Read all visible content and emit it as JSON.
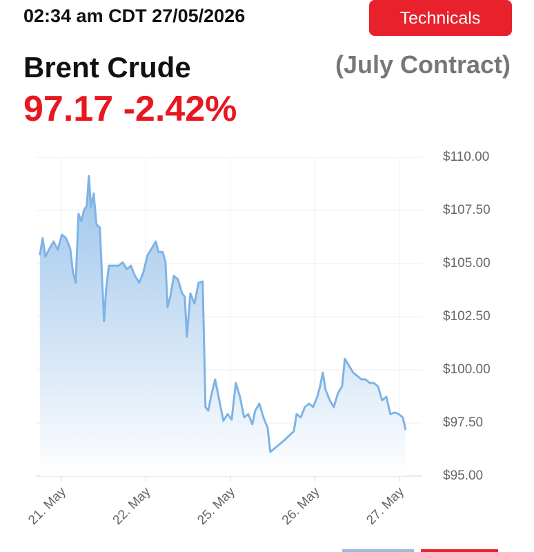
{
  "header": {
    "timestamp": "02:34 am CDT 27/05/2026",
    "button": "Technicals",
    "instrument": "Brent Crude",
    "contract": "(July Contract)",
    "price": "97.17",
    "change": "-2.42%"
  },
  "chart_data": {
    "type": "area",
    "color": "#7eb3e6",
    "x": [
      -0.253,
      -0.22,
      -0.188,
      -0.139,
      -0.09,
      -0.041,
      0.008,
      0.057,
      0.106,
      0.139,
      0.171,
      0.204,
      0.237,
      0.269,
      0.302,
      0.327,
      0.351,
      0.384,
      0.416,
      0.457,
      0.482,
      0.506,
      0.531,
      0.563,
      0.629,
      0.678,
      0.727,
      0.776,
      0.824,
      0.873,
      0.922,
      0.971,
      1.02,
      1.069,
      1.118,
      1.151,
      1.2,
      1.233,
      1.257,
      1.29,
      1.331,
      1.38,
      1.429,
      1.461,
      1.486,
      1.527,
      1.576,
      1.624,
      1.673,
      1.706,
      1.739,
      1.771,
      1.82,
      1.869,
      1.918,
      1.967,
      2.016,
      2.065,
      2.114,
      2.163,
      2.212,
      2.261,
      2.294,
      2.343,
      2.392,
      2.441,
      2.473,
      2.522,
      2.62,
      2.751,
      2.784,
      2.833,
      2.882,
      2.931,
      2.98,
      3.029,
      3.061,
      3.094,
      3.127,
      3.176,
      3.224,
      3.273,
      3.322,
      3.355,
      3.404,
      3.453,
      3.502,
      3.551,
      3.6,
      3.649,
      3.698,
      3.747,
      3.796,
      3.845,
      3.894,
      3.943,
      3.992,
      4.041,
      4.073
    ],
    "values": [
      105.39,
      106.2,
      105.32,
      105.7,
      106.04,
      105.65,
      106.36,
      106.2,
      105.7,
      104.58,
      104.1,
      107.34,
      107.0,
      107.5,
      107.73,
      109.12,
      107.66,
      108.3,
      106.85,
      106.69,
      104.42,
      102.3,
      103.77,
      104.9,
      104.9,
      104.9,
      105.06,
      104.74,
      104.9,
      104.42,
      104.1,
      104.58,
      105.39,
      105.71,
      106.04,
      105.55,
      105.55,
      105.06,
      102.95,
      103.44,
      104.42,
      104.26,
      103.6,
      103.44,
      101.56,
      103.6,
      103.12,
      104.1,
      104.16,
      98.25,
      98.08,
      98.73,
      99.55,
      98.57,
      97.6,
      97.92,
      97.66,
      99.38,
      98.73,
      97.76,
      97.92,
      97.44,
      98.08,
      98.41,
      97.76,
      97.27,
      96.14,
      96.3,
      96.62,
      97.11,
      97.92,
      97.76,
      98.25,
      98.41,
      98.25,
      98.73,
      99.22,
      99.87,
      99.06,
      98.57,
      98.25,
      98.9,
      99.22,
      100.52,
      100.19,
      99.87,
      99.71,
      99.55,
      99.55,
      99.38,
      99.38,
      99.22,
      98.57,
      98.73,
      97.92,
      97.99,
      97.92,
      97.76,
      97.17
    ],
    "xlim": [
      -0.3,
      4.27
    ],
    "xticks": [
      {
        "value": 0,
        "label": "21. May"
      },
      {
        "value": 1,
        "label": "22. May"
      },
      {
        "value": 2,
        "label": "25. May"
      },
      {
        "value": 3,
        "label": "26. May"
      },
      {
        "value": 4,
        "label": "27. May"
      }
    ],
    "ylim": [
      95,
      110
    ],
    "yticks": [
      {
        "value": 95,
        "label": "$95.00"
      },
      {
        "value": 97.5,
        "label": "$97.50"
      },
      {
        "value": 100,
        "label": "$100.00"
      },
      {
        "value": 102.5,
        "label": "$102.50"
      },
      {
        "value": 105,
        "label": "$105.00"
      },
      {
        "value": 107.5,
        "label": "$107.50"
      },
      {
        "value": 110,
        "label": "$110.00"
      }
    ],
    "grid": true
  }
}
